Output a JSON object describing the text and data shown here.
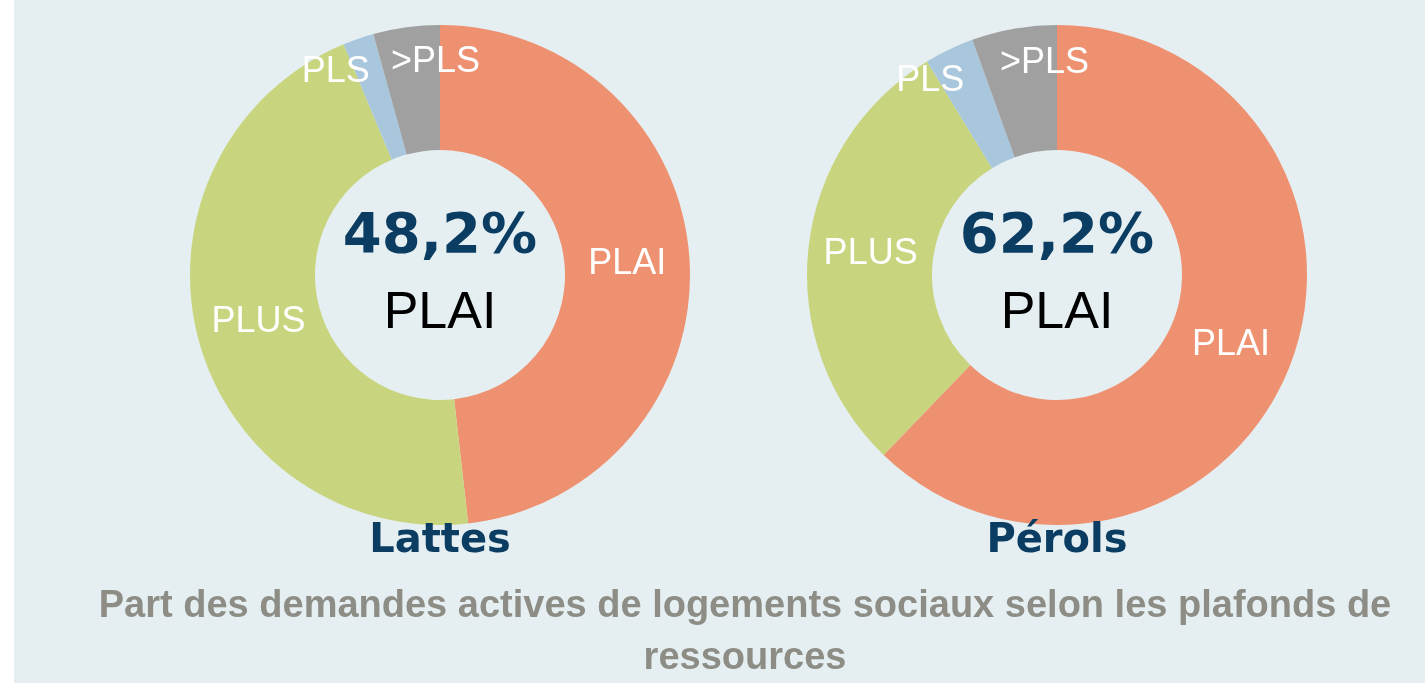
{
  "chart_data": [
    {
      "type": "donut",
      "title": "Lattes",
      "categories": [
        "PLAI",
        "PLUS",
        "PLS",
        ">PLS"
      ],
      "values": [
        48.2,
        45.5,
        2.0,
        4.3
      ],
      "colors": [
        "#ee9170",
        "#c8d57e",
        "#a9c7dc",
        "#a0a0a0"
      ],
      "annotations": [
        "48,2%",
        "PLAI"
      ],
      "legend": false
    },
    {
      "type": "donut",
      "title": "Pérols",
      "categories": [
        "PLAI",
        "PLUS",
        "PLS",
        ">PLS"
      ],
      "values": [
        62.2,
        29.1,
        3.2,
        5.5
      ],
      "colors": [
        "#ee9170",
        "#c8d57e",
        "#a9c7dc",
        "#a0a0a0"
      ],
      "annotations": [
        "62,2%",
        "PLAI"
      ],
      "legend": false
    },
    {
      "type": "other",
      "title": "Part des demandes actives de logements sociaux selon les plafonds de ressources"
    }
  ]
}
